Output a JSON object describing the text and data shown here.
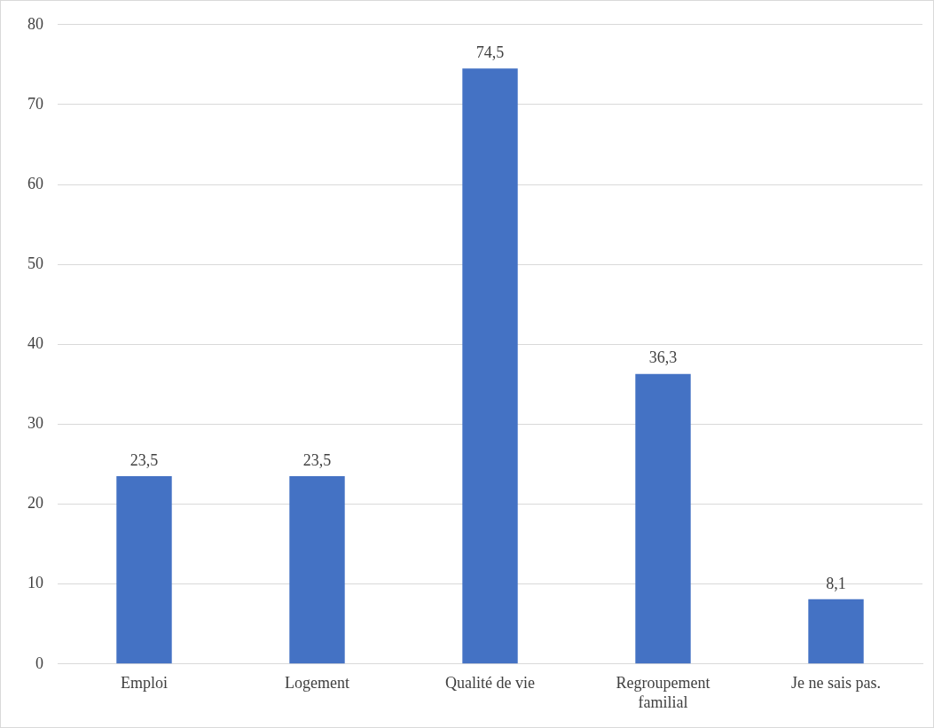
{
  "chart_data": {
    "type": "bar",
    "categories": [
      "Emploi",
      "Logement",
      "Qualité de vie",
      "Regroupement familial",
      "Je ne sais pas."
    ],
    "values": [
      23.5,
      23.5,
      74.5,
      36.3,
      8.1
    ],
    "value_labels": [
      "23,5",
      "23,5",
      "74,5",
      "36,3",
      "8,1"
    ],
    "color": "#4472c4",
    "ylim": [
      0,
      80
    ],
    "yticks": [
      0,
      10,
      20,
      30,
      40,
      50,
      60,
      70,
      80
    ],
    "grid": "y",
    "legend": false
  }
}
